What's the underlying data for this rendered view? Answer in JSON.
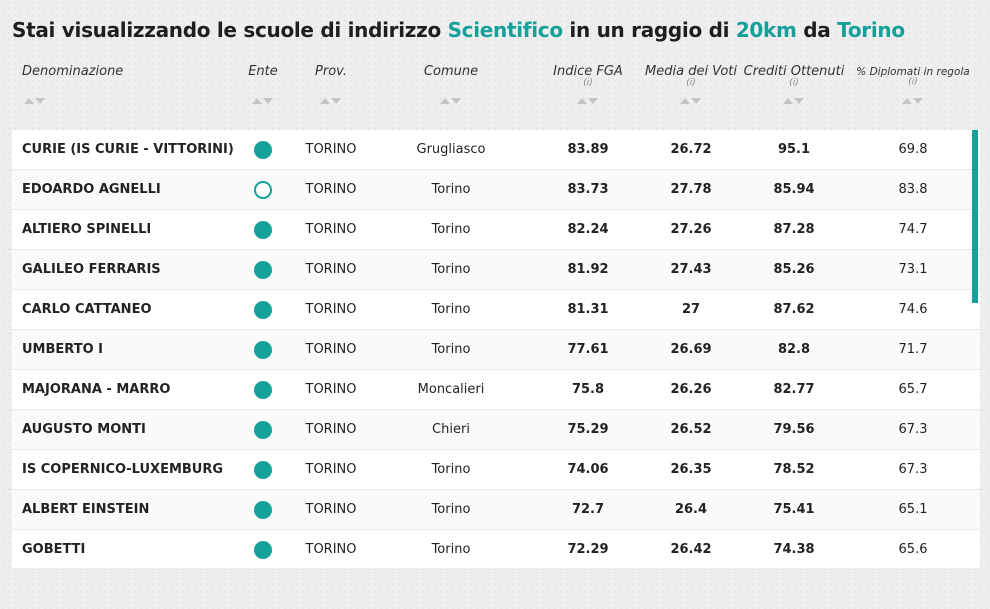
{
  "title": {
    "part1": "Stai visualizzando le scuole di indirizzo ",
    "indirizzo": "Scientifico",
    "part2": " in un raggio di ",
    "raggio": "20km",
    "part3": " da ",
    "citta": "Torino"
  },
  "colors": {
    "accent": "#15a09a"
  },
  "columns": {
    "denominazione": "Denominazione",
    "ente": "Ente",
    "prov": "Prov.",
    "comune": "Comune",
    "indice_fga": "Indice FGA",
    "media_voti": "Media dei Voti",
    "crediti": "Crediti Ottenuti",
    "diplomati": "% Diplomati in regola",
    "info_symbol": "(i)"
  },
  "rows": [
    {
      "name": "CURIE (IS CURIE - VITTORINI)",
      "ente": "filled",
      "prov": "TORINO",
      "comune": "Grugliasco",
      "fga": "83.89",
      "media": "26.72",
      "crediti": "95.1",
      "diplomati": "69.8"
    },
    {
      "name": "EDOARDO AGNELLI",
      "ente": "empty",
      "prov": "TORINO",
      "comune": "Torino",
      "fga": "83.73",
      "media": "27.78",
      "crediti": "85.94",
      "diplomati": "83.8"
    },
    {
      "name": "ALTIERO SPINELLI",
      "ente": "filled",
      "prov": "TORINO",
      "comune": "Torino",
      "fga": "82.24",
      "media": "27.26",
      "crediti": "87.28",
      "diplomati": "74.7"
    },
    {
      "name": "GALILEO FERRARIS",
      "ente": "filled",
      "prov": "TORINO",
      "comune": "Torino",
      "fga": "81.92",
      "media": "27.43",
      "crediti": "85.26",
      "diplomati": "73.1"
    },
    {
      "name": "CARLO CATTANEO",
      "ente": "filled",
      "prov": "TORINO",
      "comune": "Torino",
      "fga": "81.31",
      "media": "27",
      "crediti": "87.62",
      "diplomati": "74.6"
    },
    {
      "name": "UMBERTO I",
      "ente": "filled",
      "prov": "TORINO",
      "comune": "Torino",
      "fga": "77.61",
      "media": "26.69",
      "crediti": "82.8",
      "diplomati": "71.7"
    },
    {
      "name": "MAJORANA - MARRO",
      "ente": "filled",
      "prov": "TORINO",
      "comune": "Moncalieri",
      "fga": "75.8",
      "media": "26.26",
      "crediti": "82.77",
      "diplomati": "65.7"
    },
    {
      "name": "AUGUSTO MONTI",
      "ente": "filled",
      "prov": "TORINO",
      "comune": "Chieri",
      "fga": "75.29",
      "media": "26.52",
      "crediti": "79.56",
      "diplomati": "67.3"
    },
    {
      "name": "IS COPERNICO-LUXEMBURG",
      "ente": "filled",
      "prov": "TORINO",
      "comune": "Torino",
      "fga": "74.06",
      "media": "26.35",
      "crediti": "78.52",
      "diplomati": "67.3"
    },
    {
      "name": "ALBERT EINSTEIN",
      "ente": "filled",
      "prov": "TORINO",
      "comune": "Torino",
      "fga": "72.7",
      "media": "26.4",
      "crediti": "75.41",
      "diplomati": "65.1"
    },
    {
      "name": "GOBETTI",
      "ente": "filled",
      "prov": "TORINO",
      "comune": "Torino",
      "fga": "72.29",
      "media": "26.42",
      "crediti": "74.38",
      "diplomati": "65.6"
    }
  ]
}
